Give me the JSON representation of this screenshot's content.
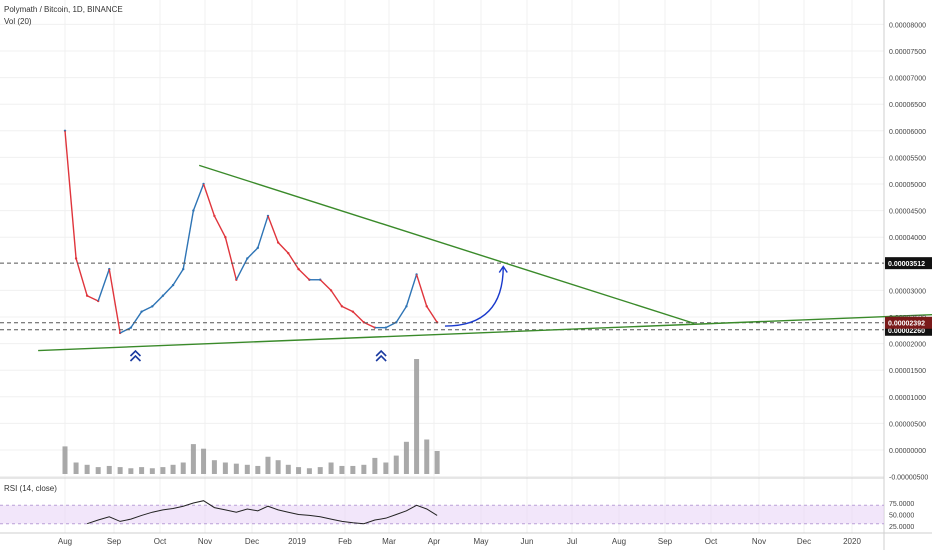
{
  "header": {
    "symbol_line": "Polymath / Bitcoin, 1D, BINANCE",
    "volume_label": "Vol (20)",
    "rsi_label": "RSI (14, close)"
  },
  "price_axis": {
    "ticks": [
      "0.00008000",
      "0.00007500",
      "0.00007000",
      "0.00006500",
      "0.00006000",
      "0.00005500",
      "0.00005000",
      "0.00004500",
      "0.00004000",
      "0.00003000",
      "0.00002500",
      "0.00002000",
      "0.00001500",
      "0.00001000",
      "0.00000500",
      "0.00000000",
      "-0.00000500"
    ],
    "tick_values": [
      8e-05,
      7.5e-05,
      7e-05,
      6.5e-05,
      6e-05,
      5.5e-05,
      5e-05,
      4.5e-05,
      4e-05,
      3e-05,
      2.5e-05,
      2e-05,
      1.5e-05,
      1e-05,
      5e-06,
      0,
      -5e-06
    ],
    "last_price_label": "0.00002392",
    "level_labels": [
      "0.00003512",
      "0.00002260"
    ]
  },
  "rsi_axis": {
    "ticks": [
      "75.0000",
      "50.0000",
      "25.0000"
    ],
    "tick_values": [
      75,
      50,
      25
    ]
  },
  "time_axis": {
    "labels": [
      "Aug",
      "Sep",
      "Oct",
      "Nov",
      "Dec",
      "2019",
      "Feb",
      "Mar",
      "Apr",
      "May",
      "Jun",
      "Jul",
      "Aug",
      "Sep",
      "Oct",
      "Nov",
      "Dec",
      "2020"
    ]
  },
  "chart_data": {
    "type": "candlestick",
    "title": "Polymath / Bitcoin, 1D, BINANCE",
    "series": [
      {
        "name": "Polymath / Bitcoin",
        "x": [
          "2018-08-01",
          "2018-08-08",
          "2018-08-15",
          "2018-08-22",
          "2018-08-29",
          "2018-09-05",
          "2018-09-12",
          "2018-09-19",
          "2018-09-26",
          "2018-10-03",
          "2018-10-10",
          "2018-10-17",
          "2018-10-24",
          "2018-10-31",
          "2018-11-07",
          "2018-11-14",
          "2018-11-21",
          "2018-11-28",
          "2018-12-05",
          "2018-12-12",
          "2018-12-19",
          "2018-12-26",
          "2019-01-02",
          "2019-01-09",
          "2019-01-16",
          "2019-01-23",
          "2019-01-30",
          "2019-02-06",
          "2019-02-13",
          "2019-02-20",
          "2019-02-27",
          "2019-03-06",
          "2019-03-13",
          "2019-03-20",
          "2019-03-27",
          "2019-04-03"
        ],
        "close": [
          6e-05,
          3.6e-05,
          2.9e-05,
          2.8e-05,
          3.4e-05,
          2.2e-05,
          2.3e-05,
          2.6e-05,
          2.7e-05,
          2.9e-05,
          3.1e-05,
          3.4e-05,
          4.5e-05,
          5e-05,
          4.4e-05,
          4e-05,
          3.2e-05,
          3.6e-05,
          3.8e-05,
          4.4e-05,
          3.9e-05,
          3.7e-05,
          3.4e-05,
          3.2e-05,
          3.2e-05,
          3e-05,
          2.7e-05,
          2.6e-05,
          2.4e-05,
          2.3e-05,
          2.3e-05,
          2.4e-05,
          2.7e-05,
          3.3e-05,
          2.7e-05,
          2.4e-05
        ]
      },
      {
        "name": "Vol (20)",
        "x": [
          "2018-08-01",
          "2018-08-08",
          "2018-08-15",
          "2018-08-22",
          "2018-08-29",
          "2018-09-05",
          "2018-09-12",
          "2018-09-19",
          "2018-09-26",
          "2018-10-03",
          "2018-10-10",
          "2018-10-17",
          "2018-10-24",
          "2018-10-31",
          "2018-11-07",
          "2018-11-14",
          "2018-11-21",
          "2018-11-28",
          "2018-12-05",
          "2018-12-12",
          "2018-12-19",
          "2018-12-26",
          "2019-01-02",
          "2019-01-09",
          "2019-01-16",
          "2019-01-23",
          "2019-01-30",
          "2019-02-06",
          "2019-02-13",
          "2019-02-20",
          "2019-02-27",
          "2019-03-06",
          "2019-03-13",
          "2019-03-20",
          "2019-03-27",
          "2019-04-03"
        ],
        "values": [
          24,
          10,
          8,
          6,
          7,
          6,
          5,
          6,
          5,
          6,
          8,
          10,
          26,
          22,
          12,
          10,
          9,
          8,
          7,
          15,
          12,
          8,
          6,
          5,
          6,
          10,
          7,
          7,
          8,
          14,
          10,
          16,
          28,
          100,
          30,
          20
        ]
      },
      {
        "name": "RSI (14, close)",
        "x": [
          "2018-08-15",
          "2018-08-22",
          "2018-08-29",
          "2018-09-05",
          "2018-09-12",
          "2018-09-19",
          "2018-09-26",
          "2018-10-03",
          "2018-10-10",
          "2018-10-17",
          "2018-10-24",
          "2018-10-31",
          "2018-11-07",
          "2018-11-14",
          "2018-11-21",
          "2018-11-28",
          "2018-12-05",
          "2018-12-12",
          "2018-12-19",
          "2018-12-26",
          "2019-01-02",
          "2019-01-09",
          "2019-01-16",
          "2019-01-23",
          "2019-01-30",
          "2019-02-06",
          "2019-02-13",
          "2019-02-20",
          "2019-02-27",
          "2019-03-06",
          "2019-03-13",
          "2019-03-20",
          "2019-03-27",
          "2019-04-03"
        ],
        "values": [
          30,
          38,
          45,
          35,
          40,
          48,
          55,
          60,
          63,
          68,
          75,
          80,
          65,
          60,
          55,
          62,
          58,
          68,
          60,
          55,
          50,
          48,
          45,
          40,
          35,
          32,
          30,
          38,
          42,
          50,
          58,
          70,
          62,
          48
        ]
      }
    ],
    "annotations": [
      {
        "type": "level",
        "value": 3.512e-05
      },
      {
        "type": "level",
        "value": 2.26e-05
      },
      {
        "type": "level",
        "value": 2.392e-05
      },
      {
        "type": "trendline",
        "points": [
          [
            "2018-10-28",
            5.35e-05
          ],
          [
            "2019-09-20",
            2.38e-05
          ]
        ],
        "color": "#3a8a2a"
      },
      {
        "type": "trendline",
        "points": [
          [
            "2018-07-15",
            1.87e-05
          ],
          [
            "2020-02-28",
            2.55e-05
          ]
        ],
        "color": "#3a8a2a"
      },
      {
        "type": "marker",
        "shape": "double-chevron-up",
        "x": "2018-09-15",
        "color": "#1a3aa0"
      },
      {
        "type": "marker",
        "shape": "double-chevron-up",
        "x": "2019-02-24",
        "color": "#1a3aa0"
      },
      {
        "type": "projection-arrow",
        "from": [
          "2019-04-08",
          2.33e-05
        ],
        "to": [
          "2019-05-16",
          3.45e-05
        ],
        "color": "#1a3acc"
      }
    ],
    "ylim": [
      -5e-06,
      8.25e-05
    ],
    "rsi_band": [
      30,
      70
    ],
    "grid": true,
    "colors": {
      "up": "#2e74b5",
      "down": "#e0353c",
      "volume": "#9a9a9a",
      "rsi_line": "#222222",
      "rsi_band": "#e9d6f7",
      "last_price": "#7a1a1a"
    }
  }
}
